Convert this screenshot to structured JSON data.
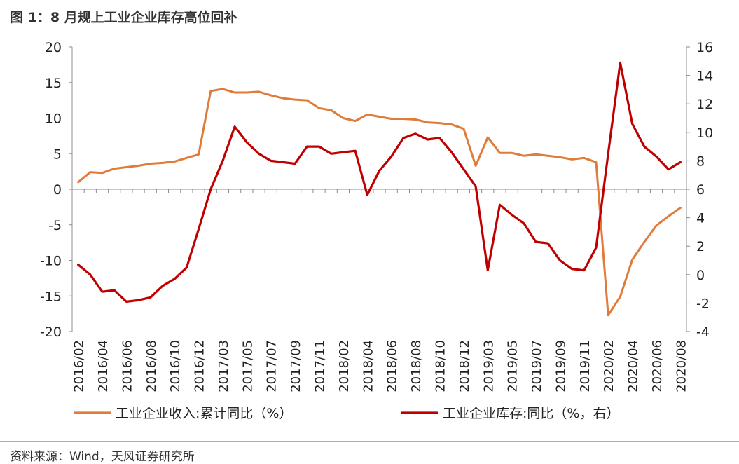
{
  "figure": {
    "title": "图 1：8 月规上工业企业库存高位回补",
    "source": "资料来源：Wind，天风证券研究所"
  },
  "chart_data": {
    "type": "line",
    "x": [
      "2016/02",
      "2016/03",
      "2016/04",
      "2016/05",
      "2016/06",
      "2016/07",
      "2016/08",
      "2016/09",
      "2016/10",
      "2016/11",
      "2016/12",
      "2017/02",
      "2017/03",
      "2017/04",
      "2017/05",
      "2017/06",
      "2017/07",
      "2017/08",
      "2017/09",
      "2017/10",
      "2017/11",
      "2017/12",
      "2018/02",
      "2018/03",
      "2018/04",
      "2018/05",
      "2018/06",
      "2018/07",
      "2018/08",
      "2018/09",
      "2018/10",
      "2018/11",
      "2018/12",
      "2019/02",
      "2019/03",
      "2019/04",
      "2019/05",
      "2019/06",
      "2019/07",
      "2019/08",
      "2019/09",
      "2019/10",
      "2019/11",
      "2019/12",
      "2020/02",
      "2020/03",
      "2020/04",
      "2020/05",
      "2020/06",
      "2020/07",
      "2020/08"
    ],
    "xticks": [
      "2016/02",
      "2016/04",
      "2016/06",
      "2016/08",
      "2016/10",
      "2016/12",
      "2017/03",
      "2017/05",
      "2017/07",
      "2017/09",
      "2017/11",
      "2018/02",
      "2018/04",
      "2018/06",
      "2018/08",
      "2018/10",
      "2018/12",
      "2019/03",
      "2019/05",
      "2019/07",
      "2019/09",
      "2019/11",
      "2020/02",
      "2020/04",
      "2020/06",
      "2020/08"
    ],
    "series": [
      {
        "name": "工业企业收入:累计同比（%）",
        "axis": "left",
        "color": "#e07b39",
        "values": [
          1.0,
          2.4,
          2.3,
          2.9,
          3.1,
          3.3,
          3.6,
          3.7,
          3.9,
          4.4,
          4.9,
          13.8,
          14.1,
          13.6,
          13.6,
          13.7,
          13.2,
          12.8,
          12.6,
          12.5,
          11.4,
          11.1,
          10.0,
          9.6,
          10.5,
          10.2,
          9.9,
          9.9,
          9.8,
          9.4,
          9.3,
          9.1,
          8.5,
          3.3,
          7.3,
          5.1,
          5.1,
          4.7,
          4.9,
          4.7,
          4.5,
          4.2,
          4.4,
          3.8,
          -17.7,
          -15.1,
          -9.9,
          -7.4,
          -5.1,
          -3.8,
          -2.6
        ]
      },
      {
        "name": "工业企业库存:同比（%，右）",
        "axis": "right",
        "color": "#c00000",
        "values": [
          0.7,
          0.0,
          -1.2,
          -1.1,
          -1.9,
          -1.8,
          -1.6,
          -0.8,
          -0.3,
          0.5,
          3.2,
          6.0,
          8.0,
          10.4,
          9.3,
          8.5,
          8.0,
          7.9,
          7.8,
          9.0,
          9.0,
          8.5,
          8.6,
          8.7,
          5.6,
          7.3,
          8.3,
          9.6,
          9.9,
          9.5,
          9.6,
          8.6,
          7.4,
          6.2,
          0.3,
          4.9,
          4.2,
          3.6,
          2.3,
          2.2,
          1.0,
          0.4,
          0.3,
          1.9,
          8.5,
          14.9,
          10.6,
          9.0,
          8.3,
          7.4,
          7.9
        ]
      }
    ],
    "ylim_left": [
      -20,
      20
    ],
    "yticks_left": [
      -20,
      -15,
      -10,
      -5,
      0,
      5,
      10,
      15,
      20
    ],
    "ylim_right": [
      -4,
      16
    ],
    "yticks_right": [
      -4,
      -2,
      0,
      2,
      4,
      6,
      8,
      10,
      12,
      14,
      16
    ],
    "grid": false,
    "legend_position": "bottom",
    "xlabel": "",
    "ylabel": ""
  }
}
